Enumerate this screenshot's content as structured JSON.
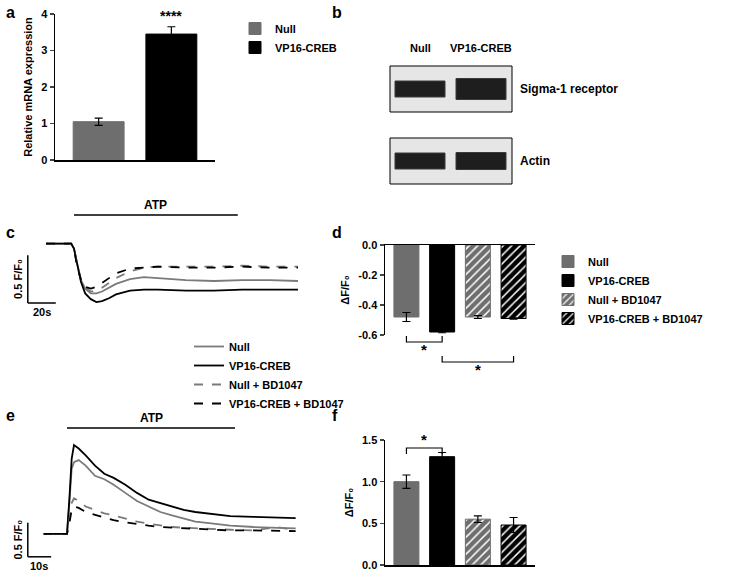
{
  "chart_data": [
    {
      "type": "bar",
      "title": "a",
      "ylabel": "Relative mRNA expression",
      "ylim": [
        0,
        4
      ],
      "yticks": [
        0,
        1,
        2,
        3,
        4
      ],
      "tick_labels": "y",
      "legend": "right",
      "series": [
        {
          "name": "Null",
          "color": "#6e6e6e",
          "marker": "solid",
          "values": [
            1.05
          ],
          "errors": [
            0.1
          ]
        },
        {
          "name": "VP16-CREB",
          "color": "#000000",
          "marker": "solid",
          "values": [
            3.45
          ],
          "errors": [
            0.2
          ]
        }
      ],
      "annotations": [
        {
          "text": "****",
          "series": 1
        }
      ]
    },
    {
      "type": "blot",
      "title": "b",
      "lanes": [
        "Null",
        "VP16-CREB"
      ],
      "rows": [
        "Sigma-1 receptor",
        "Actin"
      ]
    },
    {
      "type": "line",
      "title": "c",
      "xlim": [
        -15,
        185
      ],
      "ylim": [
        -0.85,
        0.3
      ],
      "tick_labels": false,
      "legend": "bottom",
      "x": [
        0,
        10,
        18,
        20,
        22,
        25,
        28,
        32,
        36,
        40,
        45,
        50,
        60,
        70,
        80,
        100,
        120,
        140,
        160,
        180
      ],
      "stimulus": {
        "label": "ATP",
        "start": 20,
        "end": 137
      },
      "scale_bars": {
        "x": 20,
        "x_label": "20s",
        "y": 0.5,
        "y_label": "0.5 F/F₀"
      },
      "series": [
        {
          "name": "Null",
          "color": "#7a7a7a",
          "line_style": "solid",
          "values": [
            0,
            0,
            0,
            -0.05,
            -0.2,
            -0.38,
            -0.47,
            -0.52,
            -0.52,
            -0.5,
            -0.46,
            -0.42,
            -0.37,
            -0.35,
            -0.36,
            -0.38,
            -0.39,
            -0.38,
            -0.38,
            -0.39
          ]
        },
        {
          "name": "VP16-CREB",
          "color": "#000000",
          "line_style": "solid",
          "values": [
            0,
            0,
            0,
            -0.05,
            -0.2,
            -0.4,
            -0.52,
            -0.58,
            -0.61,
            -0.6,
            -0.57,
            -0.53,
            -0.49,
            -0.48,
            -0.48,
            -0.49,
            -0.49,
            -0.48,
            -0.48,
            -0.48
          ]
        },
        {
          "name": "Null + BD1047",
          "color": "#7a7a7a",
          "line_style": "dashed",
          "values": [
            0,
            0,
            0,
            -0.05,
            -0.2,
            -0.38,
            -0.46,
            -0.5,
            -0.49,
            -0.46,
            -0.41,
            -0.36,
            -0.29,
            -0.25,
            -0.24,
            -0.24,
            -0.24,
            -0.23,
            -0.24,
            -0.24
          ]
        },
        {
          "name": "VP16-CREB + BD1047",
          "color": "#000000",
          "line_style": "dashed",
          "values": [
            0,
            0,
            0,
            -0.05,
            -0.22,
            -0.38,
            -0.45,
            -0.47,
            -0.45,
            -0.41,
            -0.36,
            -0.31,
            -0.26,
            -0.25,
            -0.24,
            -0.25,
            -0.25,
            -0.24,
            -0.25,
            -0.25
          ]
        }
      ]
    },
    {
      "type": "bar",
      "title": "d",
      "ylabel": "ΔF/F₀",
      "ylim": [
        -0.6,
        0
      ],
      "yticks": [
        {
          "value": 0,
          "label": "0.0"
        },
        -0.2,
        -0.4,
        -0.6
      ],
      "tick_labels": "y",
      "legend": "right",
      "series": [
        {
          "name": "Null",
          "color": "#6e6e6e",
          "marker": "solid",
          "values": [
            -0.48
          ],
          "errors": [
            0.03
          ]
        },
        {
          "name": "VP16-CREB",
          "color": "#000000",
          "marker": "solid",
          "values": [
            -0.58
          ],
          "errors": [
            0.005
          ]
        },
        {
          "name": "Null + BD1047",
          "color": "#6e6e6e",
          "marker": "hatched",
          "values": [
            -0.48
          ],
          "errors": [
            0.01
          ]
        },
        {
          "name": "VP16-CREB + BD1047",
          "color": "#000000",
          "marker": "hatched",
          "values": [
            -0.49
          ],
          "errors": [
            0.005
          ]
        }
      ],
      "annotations": [
        {
          "text": "*",
          "between": [
            0,
            1
          ]
        },
        {
          "text": "*",
          "between": [
            1,
            3
          ]
        }
      ]
    },
    {
      "type": "line",
      "title": "e",
      "xlim": [
        -8,
        112
      ],
      "ylim": [
        -0.5,
        1.55
      ],
      "tick_labels": false,
      "x": [
        0,
        5,
        8,
        10,
        11,
        12,
        13,
        15,
        18,
        22,
        26,
        30,
        35,
        40,
        45,
        50,
        55,
        60,
        65,
        70,
        75,
        80,
        90,
        100,
        108
      ],
      "stimulus": {
        "label": "ATP",
        "start": 10,
        "end": 82
      },
      "scale_bars": {
        "x": 10,
        "x_label": "10s",
        "y": 0.5,
        "y_label": "0.5 F/F₀"
      },
      "series": [
        {
          "name": "Null",
          "color": "#7a7a7a",
          "line_style": "solid",
          "values": [
            0,
            0,
            0,
            0,
            0.45,
            0.95,
            1.05,
            1.08,
            1.0,
            0.85,
            0.8,
            0.72,
            0.6,
            0.48,
            0.4,
            0.32,
            0.27,
            0.22,
            0.18,
            0.16,
            0.14,
            0.12,
            0.1,
            0.09,
            0.08
          ]
        },
        {
          "name": "VP16-CREB",
          "color": "#000000",
          "line_style": "solid",
          "values": [
            0,
            0,
            0,
            0,
            0.5,
            1.1,
            1.3,
            1.25,
            1.15,
            1.0,
            0.88,
            0.82,
            0.72,
            0.6,
            0.5,
            0.45,
            0.4,
            0.35,
            0.32,
            0.3,
            0.28,
            0.26,
            0.25,
            0.24,
            0.23
          ]
        },
        {
          "name": "Null + BD1047",
          "color": "#7a7a7a",
          "line_style": "dashed",
          "values": [
            0,
            0,
            0,
            0,
            0.2,
            0.45,
            0.52,
            0.48,
            0.4,
            0.35,
            0.3,
            0.27,
            0.22,
            0.18,
            0.15,
            0.12,
            0.1,
            0.09,
            0.08,
            0.07,
            0.06,
            0.06,
            0.05,
            0.1,
            0.05
          ]
        },
        {
          "name": "VP16-CREB + BD1047",
          "color": "#000000",
          "line_style": "dashed",
          "values": [
            0,
            0,
            0,
            0,
            0.15,
            0.35,
            0.4,
            0.38,
            0.32,
            0.28,
            0.24,
            0.2,
            0.17,
            0.14,
            0.12,
            0.1,
            0.09,
            0.08,
            0.07,
            0.06,
            0.06,
            0.05,
            0.05,
            0.04,
            0.04
          ]
        }
      ]
    },
    {
      "type": "bar",
      "title": "f",
      "ylabel": "ΔF/F₀",
      "ylim": [
        0,
        1.5
      ],
      "yticks": [
        {
          "value": 0,
          "label": "0.0"
        },
        0.5,
        {
          "value": 1,
          "label": "1.0"
        },
        1.5
      ],
      "tick_labels": "y",
      "series": [
        {
          "name": "Null",
          "color": "#6e6e6e",
          "marker": "solid",
          "values": [
            1.0
          ],
          "errors": [
            0.08
          ]
        },
        {
          "name": "VP16-CREB",
          "color": "#000000",
          "marker": "solid",
          "values": [
            1.3
          ],
          "errors": [
            0.05
          ]
        },
        {
          "name": "Null + BD1047",
          "color": "#6e6e6e",
          "marker": "hatched",
          "values": [
            0.55
          ],
          "errors": [
            0.04
          ]
        },
        {
          "name": "VP16-CREB + BD1047",
          "color": "#000000",
          "marker": "hatched",
          "values": [
            0.48
          ],
          "errors": [
            0.09
          ]
        }
      ],
      "annotations": [
        {
          "text": "*",
          "between": [
            0,
            1
          ]
        }
      ]
    }
  ]
}
